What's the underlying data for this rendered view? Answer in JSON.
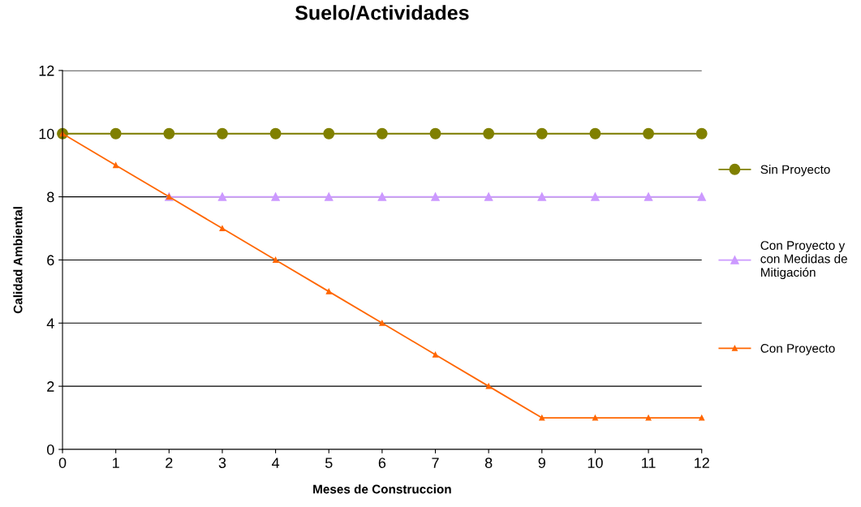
{
  "chart_data": {
    "type": "line",
    "title": "Suelo/Actividades",
    "xlabel": "Meses de Construccion",
    "ylabel": "Calidad Ambiental",
    "x": [
      0,
      1,
      2,
      3,
      4,
      5,
      6,
      7,
      8,
      9,
      10,
      11,
      12
    ],
    "xlim": [
      0,
      12
    ],
    "xticks": [
      0,
      1,
      2,
      3,
      4,
      5,
      6,
      7,
      8,
      9,
      10,
      11,
      12
    ],
    "ylim": [
      0,
      12
    ],
    "yticks": [
      0,
      2,
      4,
      6,
      8,
      10,
      12
    ],
    "grid": "y",
    "legend": "right",
    "series": [
      {
        "name": "Sin Proyecto",
        "color": "#808000",
        "marker": "circle",
        "values": [
          10,
          10,
          10,
          10,
          10,
          10,
          10,
          10,
          10,
          10,
          10,
          10,
          10
        ]
      },
      {
        "name": "Con Proyecto y con Medidas de Mitigación",
        "color": "#cc99ff",
        "marker": "triangle",
        "values": [
          null,
          null,
          8,
          8,
          8,
          8,
          8,
          8,
          8,
          8,
          8,
          8,
          8
        ]
      },
      {
        "name": "Con Proyecto",
        "color": "#ff6600",
        "marker": "triangle",
        "values": [
          10,
          9,
          8,
          7,
          6,
          5,
          4,
          3,
          2,
          1,
          1,
          1,
          1
        ]
      }
    ]
  }
}
